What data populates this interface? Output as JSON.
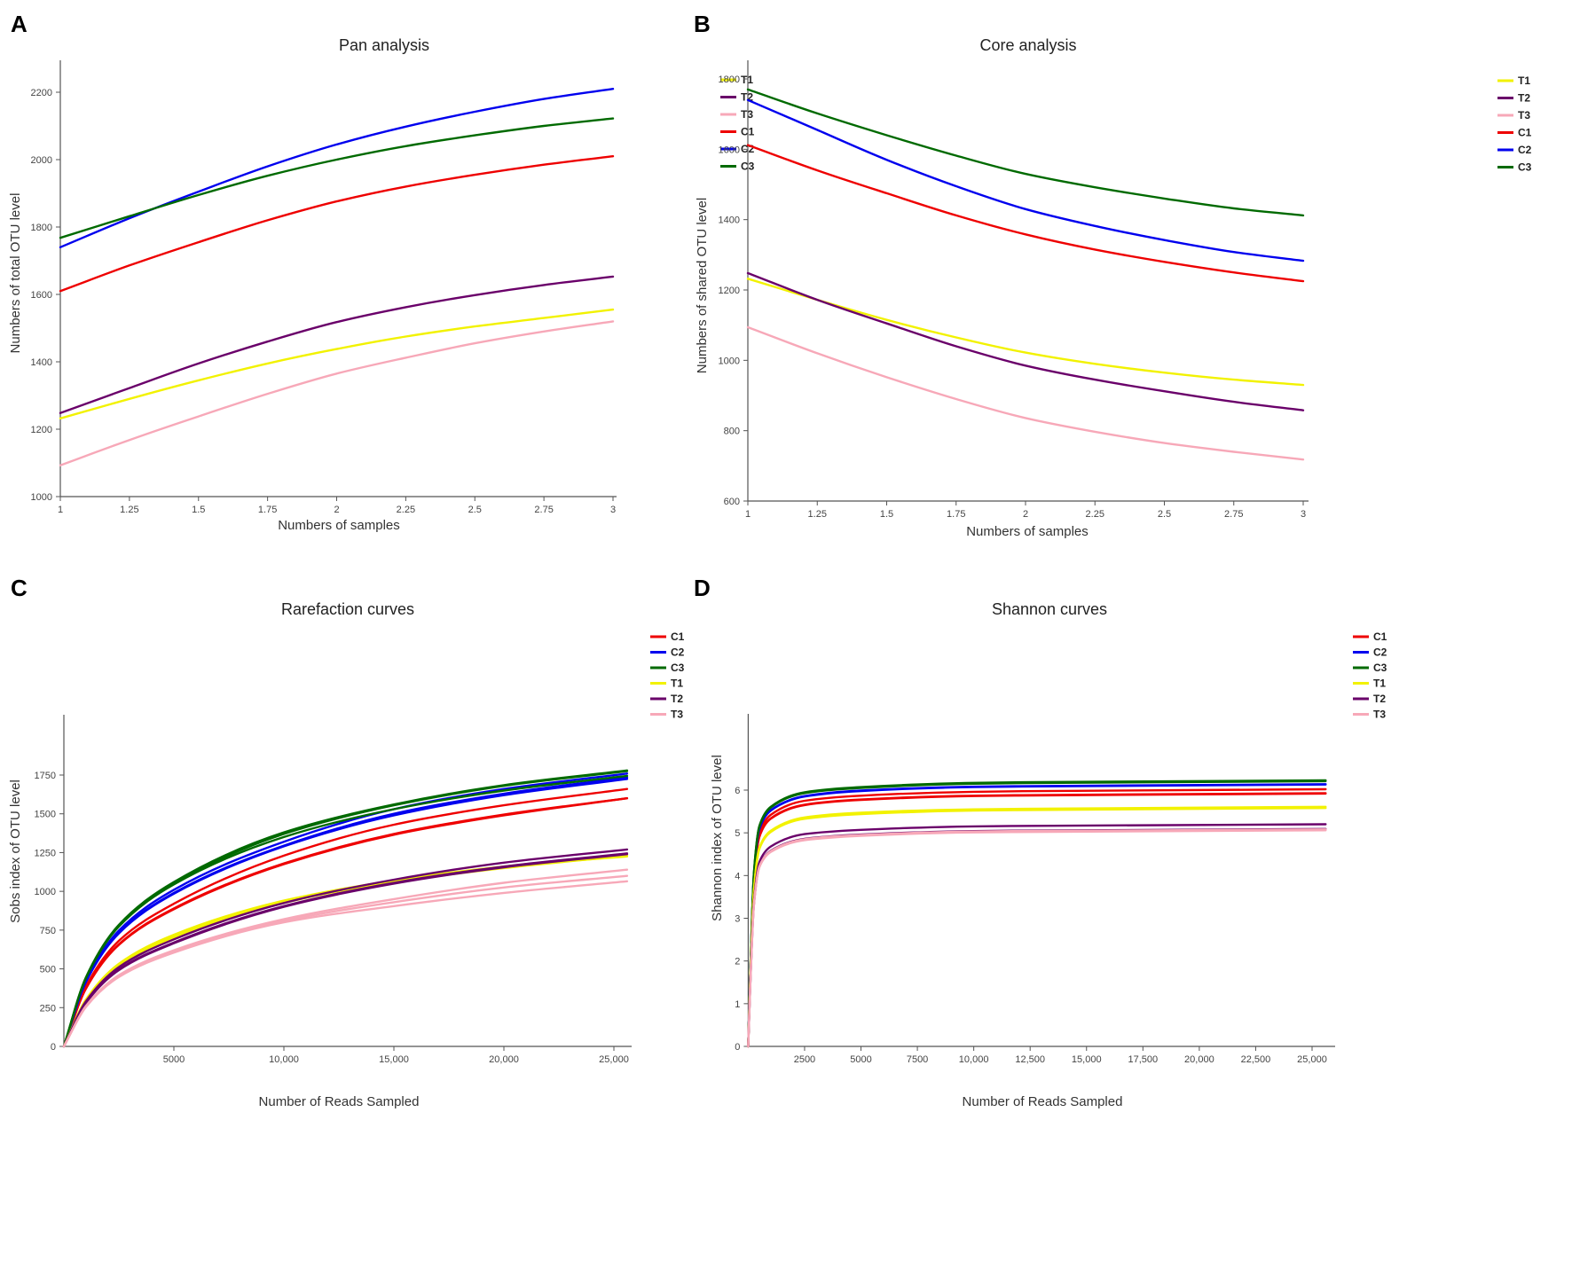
{
  "colors": {
    "T1": "#f2f200",
    "T2": "#6a006a",
    "T3": "#f7a8b8",
    "C1": "#ee0000",
    "C2": "#0000ee",
    "C3": "#006a00"
  },
  "chart_data": [
    {
      "panel_label": "A",
      "type": "line",
      "title": "Pan analysis",
      "xlabel": "Numbers of samples",
      "ylabel": "Numbers of total OTU level",
      "xlim": [
        1,
        3
      ],
      "ylim": [
        1000,
        2200
      ],
      "xticks": [
        1,
        1.25,
        1.5,
        1.75,
        2,
        2.25,
        2.5,
        2.75,
        3
      ],
      "xtick_labels": [
        "1",
        "1.25",
        "1.5",
        "1.75",
        "2",
        "2.25",
        "2.5",
        "2.75",
        "3"
      ],
      "yticks": [
        1000,
        1200,
        1400,
        1600,
        1800,
        2000,
        2200
      ],
      "ytick_labels": [
        "1000",
        "1200",
        "1400",
        "1600",
        "1800",
        "2000",
        "2200"
      ],
      "legend": [
        "T1",
        "T2",
        "T3",
        "C1",
        "C2",
        "C3"
      ],
      "legend_position": "top-right",
      "x": [
        1,
        1.25,
        1.5,
        1.75,
        2,
        2.25,
        2.5,
        2.75,
        3
      ],
      "series": [
        {
          "name": "T1",
          "group": "T1",
          "values": [
            1232,
            1290,
            1345,
            1395,
            1438,
            1475,
            1505,
            1530,
            1555
          ]
        },
        {
          "name": "T2",
          "group": "T2",
          "values": [
            1248,
            1322,
            1395,
            1460,
            1518,
            1562,
            1598,
            1628,
            1653
          ]
        },
        {
          "name": "T3",
          "group": "T3",
          "values": [
            1093,
            1168,
            1238,
            1305,
            1365,
            1412,
            1455,
            1490,
            1520
          ]
        },
        {
          "name": "C1",
          "group": "C1",
          "values": [
            1610,
            1686,
            1755,
            1820,
            1876,
            1920,
            1955,
            1985,
            2010
          ]
        },
        {
          "name": "C2",
          "group": "C2",
          "values": [
            1740,
            1826,
            1905,
            1980,
            2045,
            2098,
            2142,
            2180,
            2210
          ]
        },
        {
          "name": "C3",
          "group": "C3",
          "values": [
            1768,
            1832,
            1895,
            1952,
            2000,
            2040,
            2072,
            2100,
            2122
          ]
        }
      ]
    },
    {
      "panel_label": "B",
      "type": "line",
      "title": "Core analysis",
      "xlabel": "Numbers of samples",
      "ylabel": "Numbers of shared OTU level",
      "xlim": [
        1,
        3
      ],
      "ylim": [
        600,
        1800
      ],
      "xticks": [
        1,
        1.25,
        1.5,
        1.75,
        2,
        2.25,
        2.5,
        2.75,
        3
      ],
      "xtick_labels": [
        "1",
        "1.25",
        "1.5",
        "1.75",
        "2",
        "2.25",
        "2.5",
        "2.75",
        "3"
      ],
      "yticks": [
        600,
        800,
        1000,
        1200,
        1400,
        1600,
        1800
      ],
      "ytick_labels": [
        "600",
        "800",
        "1000",
        "1200",
        "1400",
        "1600",
        "1800"
      ],
      "legend": [
        "T1",
        "T2",
        "T3",
        "C1",
        "C2",
        "C3"
      ],
      "legend_position": "top-right",
      "x": [
        1,
        1.25,
        1.5,
        1.75,
        2,
        2.25,
        2.5,
        2.75,
        3
      ],
      "series": [
        {
          "name": "T1",
          "group": "T1",
          "values": [
            1232,
            1172,
            1115,
            1065,
            1022,
            990,
            965,
            945,
            930
          ]
        },
        {
          "name": "T2",
          "group": "T2",
          "values": [
            1248,
            1172,
            1105,
            1040,
            985,
            945,
            912,
            882,
            858
          ]
        },
        {
          "name": "T3",
          "group": "T3",
          "values": [
            1094,
            1020,
            952,
            890,
            836,
            797,
            765,
            740,
            718
          ]
        },
        {
          "name": "C1",
          "group": "C1",
          "values": [
            1612,
            1540,
            1475,
            1412,
            1358,
            1315,
            1280,
            1250,
            1225
          ]
        },
        {
          "name": "C2",
          "group": "C2",
          "values": [
            1740,
            1655,
            1570,
            1495,
            1430,
            1382,
            1342,
            1308,
            1283
          ]
        },
        {
          "name": "C3",
          "group": "C3",
          "values": [
            1770,
            1702,
            1640,
            1582,
            1530,
            1492,
            1460,
            1432,
            1412
          ]
        }
      ]
    },
    {
      "panel_label": "C",
      "type": "line",
      "title": "Rarefaction curves",
      "xlabel": "Number of Reads Sampled",
      "ylabel": "Sobs index of OTU level",
      "xlim": [
        0,
        25600
      ],
      "ylim": [
        0,
        1750
      ],
      "xticks": [
        5000,
        10000,
        15000,
        20000,
        25000
      ],
      "xtick_labels": [
        "5000",
        "10,000",
        "15,000",
        "20,000",
        "25,000"
      ],
      "yticks": [
        0,
        250,
        500,
        750,
        1000,
        1250,
        1500,
        1750
      ],
      "ytick_labels": [
        "0",
        "250",
        "500",
        "750",
        "1000",
        "1250",
        "1500",
        "1750"
      ],
      "legend": [
        "C1",
        "C2",
        "C3",
        "T1",
        "T2",
        "T3"
      ],
      "legend_position": "top-right",
      "x": [
        0,
        1000,
        2500,
        5000,
        10000,
        15000,
        20000,
        25600
      ],
      "series": [
        {
          "name": "C1-rep1",
          "group": "C1",
          "values": [
            0,
            386,
            681,
            920,
            1230,
            1430,
            1555,
            1660
          ]
        },
        {
          "name": "C1-rep2",
          "group": "C1",
          "values": [
            0,
            374,
            659,
            890,
            1180,
            1370,
            1495,
            1600
          ]
        },
        {
          "name": "C1-rep3",
          "group": "C1",
          "values": [
            0,
            372,
            655,
            885,
            1175,
            1365,
            1490,
            1600
          ]
        },
        {
          "name": "C2-rep1",
          "group": "C2",
          "values": [
            0,
            424,
            747,
            1010,
            1320,
            1530,
            1660,
            1760
          ]
        },
        {
          "name": "C2-rep2",
          "group": "C2",
          "values": [
            0,
            416,
            733,
            990,
            1295,
            1500,
            1630,
            1735
          ]
        },
        {
          "name": "C2-rep3",
          "group": "C2",
          "values": [
            0,
            414,
            729,
            985,
            1290,
            1490,
            1620,
            1725
          ]
        },
        {
          "name": "C3-rep1",
          "group": "C3",
          "values": [
            0,
            445,
            784,
            1060,
            1380,
            1560,
            1685,
            1780
          ]
        },
        {
          "name": "C3-rep2",
          "group": "C3",
          "values": [
            0,
            441,
            777,
            1050,
            1370,
            1555,
            1680,
            1775
          ]
        },
        {
          "name": "C3-rep3",
          "group": "C3",
          "values": [
            0,
            439,
            773,
            1045,
            1350,
            1530,
            1650,
            1745
          ]
        },
        {
          "name": "T1-rep1",
          "group": "T1",
          "values": [
            0,
            302,
            533,
            720,
            940,
            1070,
            1160,
            1225
          ]
        },
        {
          "name": "T1-rep2",
          "group": "T1",
          "values": [
            0,
            294,
            518,
            700,
            925,
            1065,
            1160,
            1240
          ]
        },
        {
          "name": "T1-rep3",
          "group": "T1",
          "values": [
            0,
            298,
            525,
            710,
            930,
            1060,
            1150,
            1230
          ]
        },
        {
          "name": "T2-rep1",
          "group": "T2",
          "values": [
            0,
            290,
            511,
            690,
            925,
            1075,
            1185,
            1270
          ]
        },
        {
          "name": "T2-rep2",
          "group": "T2",
          "values": [
            0,
            281,
            496,
            670,
            905,
            1055,
            1160,
            1245
          ]
        },
        {
          "name": "T2-rep3",
          "group": "T2",
          "values": [
            0,
            279,
            492,
            665,
            900,
            1050,
            1155,
            1240
          ]
        },
        {
          "name": "T3-rep1",
          "group": "T3",
          "values": [
            0,
            260,
            459,
            620,
            820,
            950,
            1055,
            1140
          ]
        },
        {
          "name": "T3-rep2",
          "group": "T3",
          "values": [
            0,
            256,
            451,
            610,
            810,
            930,
            1025,
            1100
          ]
        },
        {
          "name": "T3-rep3",
          "group": "T3",
          "values": [
            0,
            254,
            448,
            605,
            800,
            905,
            990,
            1065
          ]
        }
      ]
    },
    {
      "panel_label": "D",
      "type": "line",
      "title": "Shannon curves",
      "xlabel": "Number of Reads Sampled",
      "ylabel": "Shannon index of OTU level",
      "xlim": [
        0,
        25600
      ],
      "ylim": [
        0,
        6
      ],
      "xticks": [
        2500,
        5000,
        7500,
        10000,
        12500,
        15000,
        17500,
        20000,
        22500,
        25000
      ],
      "xtick_labels": [
        "2500",
        "5000",
        "7500",
        "10,000",
        "12,500",
        "15,000",
        "17,500",
        "20,000",
        "22,500",
        "25,000"
      ],
      "yticks": [
        0,
        1,
        2,
        3,
        4,
        5,
        6
      ],
      "ytick_labels": [
        "0",
        "1",
        "2",
        "3",
        "4",
        "5",
        "6"
      ],
      "legend": [
        "C1",
        "C2",
        "C3",
        "T1",
        "T2",
        "T3"
      ],
      "legend_position": "top-right",
      "x": [
        0,
        100,
        250,
        500,
        1000,
        2500,
        5000,
        10000,
        25600
      ],
      "series": [
        {
          "name": "C1-rep1",
          "group": "C1",
          "values": [
            0,
            1.81,
            3.91,
            5.0,
            5.42,
            5.75,
            5.87,
            5.96,
            6.02
          ]
        },
        {
          "name": "C1-rep2",
          "group": "C1",
          "values": [
            0,
            1.78,
            3.85,
            4.92,
            5.34,
            5.66,
            5.78,
            5.87,
            5.93
          ]
        },
        {
          "name": "C1-rep3",
          "group": "C1",
          "values": [
            0,
            1.78,
            3.85,
            4.91,
            5.33,
            5.65,
            5.77,
            5.86,
            5.92
          ]
        },
        {
          "name": "C2-rep1",
          "group": "C2",
          "values": [
            0,
            1.84,
            3.99,
            5.1,
            5.53,
            5.86,
            5.99,
            6.08,
            6.14
          ]
        },
        {
          "name": "C2-rep2",
          "group": "C2",
          "values": [
            0,
            1.84,
            3.98,
            5.09,
            5.52,
            5.85,
            5.98,
            6.07,
            6.13
          ]
        },
        {
          "name": "C3-rep1",
          "group": "C3",
          "values": [
            0,
            1.87,
            4.05,
            5.17,
            5.61,
            5.95,
            6.07,
            6.17,
            6.23
          ]
        },
        {
          "name": "C3-rep2",
          "group": "C3",
          "values": [
            0,
            1.86,
            4.04,
            5.15,
            5.59,
            5.93,
            6.05,
            6.15,
            6.21
          ]
        },
        {
          "name": "T1-rep1",
          "group": "T1",
          "values": [
            0,
            1.68,
            3.65,
            4.66,
            5.05,
            5.36,
            5.47,
            5.55,
            5.61
          ]
        },
        {
          "name": "T1-rep2",
          "group": "T1",
          "values": [
            0,
            1.67,
            3.63,
            4.63,
            5.02,
            5.33,
            5.44,
            5.52,
            5.58
          ]
        },
        {
          "name": "T2-rep1",
          "group": "T2",
          "values": [
            0,
            1.56,
            3.38,
            4.32,
            4.68,
            4.97,
            5.07,
            5.15,
            5.2
          ]
        },
        {
          "name": "T2-rep2",
          "group": "T2",
          "values": [
            0,
            1.53,
            3.31,
            4.22,
            4.58,
            4.86,
            4.96,
            5.04,
            5.09
          ]
        },
        {
          "name": "T3-rep1",
          "group": "T3",
          "values": [
            0,
            1.52,
            3.3,
            4.22,
            4.57,
            4.85,
            4.95,
            5.03,
            5.08
          ]
        },
        {
          "name": "T3-rep2",
          "group": "T3",
          "values": [
            0,
            1.52,
            3.29,
            4.2,
            4.55,
            4.83,
            4.93,
            5.01,
            5.06
          ]
        }
      ]
    }
  ]
}
